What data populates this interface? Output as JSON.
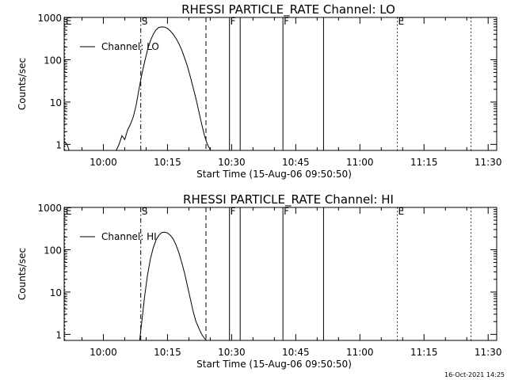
{
  "footer": {
    "timestamp": "16-Oct-2021 14:25"
  },
  "chart_data": [
    {
      "type": "line",
      "title": "RHESSI PARTICLE_RATE Channel: LO",
      "xlabel": "Start Time (15-Aug-06 09:50:50)",
      "ylabel": "Counts/sec",
      "x_tick_labels": [
        "10:00",
        "10:15",
        "10:30",
        "10:45",
        "11:00",
        "11:15",
        "11:30"
      ],
      "x_ticks": [
        "10:00",
        "10:15",
        "10:30",
        "10:45",
        "11:00",
        "11:15",
        "11:30"
      ],
      "y_tick_labels": [
        "1",
        "10",
        "100",
        "1000"
      ],
      "y_ticks": [
        1,
        10,
        100,
        1000
      ],
      "xlim": [
        "09:50:50",
        "11:32:00"
      ],
      "ylim": [
        0.72,
        1000
      ],
      "y_scale": "log",
      "legend": {
        "entries": [
          "Channel: LO"
        ],
        "placement": "top-left"
      },
      "markers": [
        {
          "label": "E",
          "time": "09:51:00",
          "style": "dotted"
        },
        {
          "label": "S",
          "time": "10:08:45",
          "style": "dash-dot"
        },
        {
          "label": "",
          "time": "10:24:00",
          "style": "dashed"
        },
        {
          "label": "F",
          "time": "10:29:30",
          "style": "solid"
        },
        {
          "label": "",
          "time": "10:32:00",
          "style": "solid"
        },
        {
          "label": "F",
          "time": "10:42:00",
          "style": "solid"
        },
        {
          "label": "",
          "time": "10:51:30",
          "style": "solid"
        },
        {
          "label": "E",
          "time": "11:08:45",
          "style": "dotted"
        },
        {
          "label": "",
          "time": "11:26:00",
          "style": "dotted"
        }
      ],
      "series": [
        {
          "name": "Channel: LO",
          "x": [
            "09:50:50",
            "09:51:30",
            "09:52:00",
            "10:03:00",
            "10:03:40",
            "10:04:20",
            "10:05:00",
            "10:05:40",
            "10:06:20",
            "10:07:00",
            "10:07:40",
            "10:08:20",
            "10:09:00",
            "10:09:40",
            "10:10:20",
            "10:11:00",
            "10:11:40",
            "10:12:20",
            "10:13:00",
            "10:13:40",
            "10:14:20",
            "10:15:00",
            "10:15:40",
            "10:16:20",
            "10:17:00",
            "10:17:40",
            "10:18:20",
            "10:19:00",
            "10:19:40",
            "10:20:20",
            "10:21:00",
            "10:21:40",
            "10:22:20",
            "10:23:00",
            "10:23:40",
            "10:24:20",
            "10:25:00",
            "10:25:10"
          ],
          "y": [
            1.2,
            1.0,
            0.72,
            0.72,
            1.0,
            1.6,
            1.3,
            2.2,
            3.0,
            4.5,
            8.5,
            20,
            45,
            90,
            170,
            280,
            400,
            510,
            580,
            600,
            590,
            550,
            480,
            400,
            320,
            240,
            170,
            110,
            70,
            40,
            22,
            12,
            6,
            3,
            1.6,
            1.0,
            0.75,
            0.72
          ]
        }
      ]
    },
    {
      "type": "line",
      "title": "RHESSI PARTICLE_RATE Channel: HI",
      "xlabel": "Start Time (15-Aug-06 09:50:50)",
      "ylabel": "Counts/sec",
      "x_tick_labels": [
        "10:00",
        "10:15",
        "10:30",
        "10:45",
        "11:00",
        "11:15",
        "11:30"
      ],
      "x_ticks": [
        "10:00",
        "10:15",
        "10:30",
        "10:45",
        "11:00",
        "11:15",
        "11:30"
      ],
      "y_tick_labels": [
        "1",
        "10",
        "100",
        "1000"
      ],
      "y_ticks": [
        1,
        10,
        100,
        1000
      ],
      "xlim": [
        "09:50:50",
        "11:32:00"
      ],
      "ylim": [
        0.72,
        1000
      ],
      "y_scale": "log",
      "legend": {
        "entries": [
          "Channel: HI"
        ],
        "placement": "top-left"
      },
      "markers": [
        {
          "label": "E",
          "time": "09:51:00",
          "style": "dotted"
        },
        {
          "label": "S",
          "time": "10:08:45",
          "style": "dash-dot"
        },
        {
          "label": "",
          "time": "10:24:00",
          "style": "dashed"
        },
        {
          "label": "F",
          "time": "10:29:30",
          "style": "solid"
        },
        {
          "label": "",
          "time": "10:32:00",
          "style": "solid"
        },
        {
          "label": "F",
          "time": "10:42:00",
          "style": "solid"
        },
        {
          "label": "",
          "time": "10:51:30",
          "style": "solid"
        },
        {
          "label": "E",
          "time": "11:08:45",
          "style": "dotted"
        },
        {
          "label": "",
          "time": "11:26:00",
          "style": "dotted"
        }
      ],
      "series": [
        {
          "name": "Channel: HI",
          "x": [
            "10:08:30",
            "10:09:00",
            "10:09:40",
            "10:10:20",
            "10:11:00",
            "10:11:40",
            "10:12:20",
            "10:13:00",
            "10:13:40",
            "10:14:20",
            "10:15:00",
            "10:15:40",
            "10:16:20",
            "10:17:00",
            "10:17:40",
            "10:18:20",
            "10:19:00",
            "10:19:40",
            "10:20:20",
            "10:21:00",
            "10:21:40",
            "10:22:20",
            "10:23:00",
            "10:23:40",
            "10:24:10"
          ],
          "y": [
            0.72,
            2.0,
            8,
            25,
            60,
            110,
            170,
            220,
            255,
            260,
            250,
            220,
            180,
            130,
            85,
            50,
            28,
            14,
            7,
            3.5,
            2.0,
            1.4,
            1.0,
            0.8,
            0.72
          ]
        }
      ]
    }
  ]
}
